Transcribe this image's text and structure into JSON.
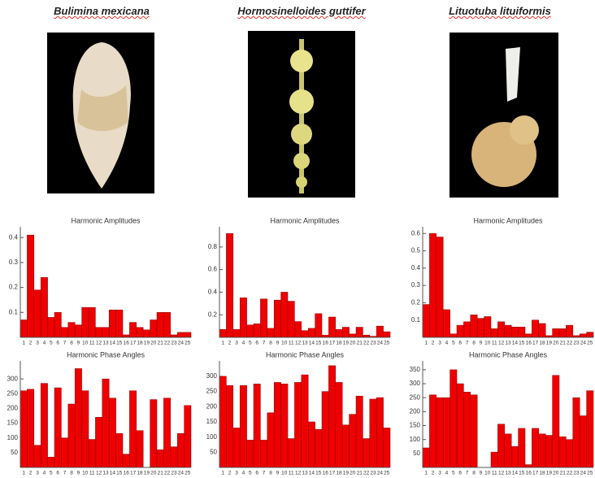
{
  "species": [
    "Bulimina mexicana",
    "Hormosinelloides guttifer",
    "Lituotuba lituiformis"
  ],
  "chart_data": [
    {
      "type": "bar",
      "title": "Harmonic Amplitudes",
      "categories": [
        1,
        2,
        3,
        4,
        5,
        6,
        7,
        8,
        9,
        10,
        11,
        12,
        13,
        14,
        15,
        16,
        17,
        18,
        19,
        20,
        21,
        22,
        23,
        24,
        25
      ],
      "values": [
        0.07,
        0.41,
        0.19,
        0.24,
        0.08,
        0.1,
        0.04,
        0.06,
        0.05,
        0.12,
        0.12,
        0.04,
        0.04,
        0.11,
        0.11,
        0.01,
        0.06,
        0.04,
        0.03,
        0.07,
        0.1,
        0.1,
        0.01,
        0.02,
        0.02
      ],
      "color": "#ee0000",
      "ylim": [
        0,
        0.43
      ],
      "yticks": [
        0.1,
        0.2,
        0.3,
        0.4
      ]
    },
    {
      "type": "bar",
      "title": "Harmonic Amplitudes",
      "categories": [
        1,
        2,
        3,
        4,
        5,
        6,
        7,
        8,
        9,
        10,
        11,
        12,
        13,
        14,
        15,
        16,
        17,
        18,
        19,
        20,
        21,
        22,
        23,
        24,
        25
      ],
      "values": [
        0.07,
        0.92,
        0.07,
        0.35,
        0.11,
        0.12,
        0.34,
        0.08,
        0.33,
        0.4,
        0.32,
        0.14,
        0.06,
        0.08,
        0.21,
        0.02,
        0.18,
        0.07,
        0.09,
        0.03,
        0.09,
        0.02,
        0.01,
        0.1,
        0.05
      ],
      "color": "#ee0000",
      "ylim": [
        0,
        0.95
      ],
      "yticks": [
        0.2,
        0.4,
        0.6,
        0.8
      ]
    },
    {
      "type": "bar",
      "title": "Harmonic Amplitudes",
      "categories": [
        1,
        2,
        3,
        4,
        5,
        6,
        7,
        8,
        9,
        10,
        11,
        12,
        13,
        14,
        15,
        16,
        17,
        18,
        19,
        20,
        21,
        22,
        23,
        24,
        25
      ],
      "values": [
        0.19,
        0.6,
        0.58,
        0.16,
        0.02,
        0.07,
        0.09,
        0.13,
        0.11,
        0.12,
        0.05,
        0.09,
        0.07,
        0.06,
        0.06,
        0.02,
        0.1,
        0.08,
        0.01,
        0.05,
        0.05,
        0.07,
        0.01,
        0.02,
        0.03
      ],
      "color": "#ee0000",
      "ylim": [
        0,
        0.62
      ],
      "yticks": [
        0.1,
        0.2,
        0.3,
        0.4,
        0.5,
        0.6
      ]
    },
    {
      "type": "bar",
      "title": "Harmonic Phase Angles",
      "categories": [
        1,
        2,
        3,
        4,
        5,
        6,
        7,
        8,
        9,
        10,
        11,
        12,
        13,
        14,
        15,
        16,
        17,
        18,
        19,
        20,
        21,
        22,
        23,
        24,
        25
      ],
      "values": [
        260,
        265,
        75,
        285,
        35,
        270,
        100,
        215,
        335,
        260,
        95,
        170,
        300,
        235,
        115,
        45,
        260,
        125,
        0,
        230,
        60,
        235,
        70,
        115,
        210
      ],
      "color": "#ee0000",
      "ylim": [
        0,
        350
      ],
      "yticks": [
        50,
        100,
        150,
        200,
        250,
        300
      ]
    },
    {
      "type": "bar",
      "title": "Harmonic Phase Angles",
      "categories": [
        1,
        2,
        3,
        4,
        5,
        6,
        7,
        8,
        9,
        10,
        11,
        12,
        13,
        14,
        15,
        16,
        17,
        18,
        19,
        20,
        21,
        22,
        23,
        24,
        25
      ],
      "values": [
        300,
        270,
        130,
        270,
        90,
        275,
        90,
        180,
        280,
        275,
        95,
        280,
        305,
        150,
        125,
        250,
        335,
        280,
        140,
        175,
        235,
        95,
        225,
        230,
        130
      ],
      "color": "#ee0000",
      "ylim": [
        0,
        340
      ],
      "yticks": [
        50,
        100,
        150,
        200,
        250,
        300
      ]
    },
    {
      "type": "bar",
      "title": "Harmonic Phase Angles",
      "categories": [
        1,
        2,
        3,
        4,
        5,
        6,
        7,
        8,
        9,
        10,
        11,
        12,
        13,
        14,
        15,
        16,
        17,
        18,
        19,
        20,
        21,
        22,
        23,
        24,
        25
      ],
      "values": [
        70,
        260,
        250,
        250,
        350,
        300,
        270,
        260,
        0,
        0,
        55,
        155,
        120,
        75,
        140,
        10,
        140,
        120,
        115,
        330,
        110,
        100,
        250,
        185,
        275
      ],
      "color": "#ee0000",
      "ylim": [
        0,
        370
      ],
      "yticks": [
        50,
        100,
        150,
        200,
        250,
        300,
        350
      ]
    }
  ]
}
